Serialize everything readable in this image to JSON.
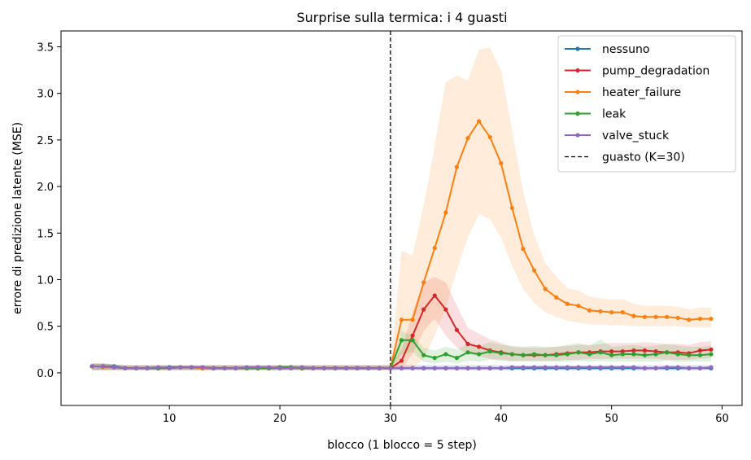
{
  "chart_data": {
    "type": "line",
    "title": "Surprise sulla termica: i 4 guasti",
    "xlabel": "blocco (1 blocco = 5 step)",
    "ylabel": "errore di predizione latente (MSE)",
    "xlim": [
      0.2,
      61.8
    ],
    "ylim": [
      -0.35,
      3.67
    ],
    "xticks": [
      10,
      20,
      30,
      40,
      50,
      60
    ],
    "yticks": [
      0.0,
      0.5,
      1.0,
      1.5,
      2.0,
      2.5,
      3.0,
      3.5
    ],
    "grid": false,
    "legend_position": "top-right",
    "x": [
      3,
      4,
      5,
      6,
      7,
      8,
      9,
      10,
      11,
      12,
      13,
      14,
      15,
      16,
      17,
      18,
      19,
      20,
      21,
      22,
      23,
      24,
      25,
      26,
      27,
      28,
      29,
      30,
      31,
      32,
      33,
      34,
      35,
      36,
      37,
      38,
      39,
      40,
      41,
      42,
      43,
      44,
      45,
      46,
      47,
      48,
      49,
      50,
      51,
      52,
      53,
      54,
      55,
      56,
      57,
      58,
      59
    ],
    "series": [
      {
        "name": "nessuno",
        "color": "#1f77b4",
        "values": [
          0.07,
          0.07,
          0.07,
          0.05,
          0.05,
          0.05,
          0.05,
          0.06,
          0.06,
          0.06,
          0.05,
          0.05,
          0.05,
          0.05,
          0.05,
          0.05,
          0.05,
          0.05,
          0.05,
          0.05,
          0.05,
          0.05,
          0.05,
          0.05,
          0.05,
          0.05,
          0.05,
          0.05,
          0.05,
          0.05,
          0.05,
          0.05,
          0.05,
          0.05,
          0.05,
          0.05,
          0.05,
          0.05,
          0.05,
          0.05,
          0.05,
          0.05,
          0.05,
          0.05,
          0.05,
          0.05,
          0.05,
          0.05,
          0.05,
          0.05,
          0.05,
          0.05,
          0.05,
          0.05,
          0.05,
          0.05,
          0.05
        ],
        "band_low": [
          0.03,
          0.03,
          0.03,
          0.03,
          0.03,
          0.03,
          0.03,
          0.03,
          0.03,
          0.03,
          0.03,
          0.03,
          0.03,
          0.03,
          0.03,
          0.03,
          0.03,
          0.03,
          0.03,
          0.03,
          0.03,
          0.03,
          0.03,
          0.03,
          0.03,
          0.03,
          0.03,
          0.03,
          0.03,
          0.03,
          0.03,
          0.03,
          0.03,
          0.03,
          0.03,
          0.03,
          0.03,
          0.03,
          0.03,
          0.03,
          0.03,
          0.03,
          0.03,
          0.03,
          0.03,
          0.03,
          0.03,
          0.03,
          0.03,
          0.03,
          0.03,
          0.03,
          0.03,
          0.03,
          0.03,
          0.03,
          0.03
        ],
        "band_high": [
          0.1,
          0.1,
          0.09,
          0.08,
          0.08,
          0.08,
          0.08,
          0.08,
          0.08,
          0.08,
          0.08,
          0.08,
          0.08,
          0.08,
          0.08,
          0.08,
          0.08,
          0.08,
          0.08,
          0.08,
          0.08,
          0.08,
          0.08,
          0.08,
          0.08,
          0.08,
          0.08,
          0.08,
          0.08,
          0.08,
          0.08,
          0.08,
          0.08,
          0.08,
          0.08,
          0.08,
          0.08,
          0.08,
          0.08,
          0.08,
          0.08,
          0.08,
          0.08,
          0.08,
          0.08,
          0.08,
          0.08,
          0.08,
          0.08,
          0.08,
          0.08,
          0.08,
          0.08,
          0.08,
          0.08,
          0.08,
          0.08
        ]
      },
      {
        "name": "pump_degradation",
        "color": "#d62728",
        "values": [
          0.07,
          0.07,
          0.06,
          0.05,
          0.05,
          0.05,
          0.05,
          0.05,
          0.06,
          0.06,
          0.05,
          0.05,
          0.05,
          0.05,
          0.05,
          0.06,
          0.05,
          0.06,
          0.06,
          0.05,
          0.05,
          0.05,
          0.05,
          0.05,
          0.05,
          0.05,
          0.05,
          0.05,
          0.13,
          0.4,
          0.68,
          0.83,
          0.68,
          0.46,
          0.31,
          0.28,
          0.24,
          0.22,
          0.2,
          0.19,
          0.19,
          0.19,
          0.2,
          0.21,
          0.22,
          0.22,
          0.23,
          0.23,
          0.23,
          0.24,
          0.24,
          0.23,
          0.22,
          0.22,
          0.21,
          0.24,
          0.25
        ],
        "band_low": [
          0.03,
          0.03,
          0.03,
          0.03,
          0.03,
          0.03,
          0.03,
          0.03,
          0.03,
          0.03,
          0.03,
          0.03,
          0.03,
          0.03,
          0.03,
          0.03,
          0.03,
          0.03,
          0.03,
          0.03,
          0.03,
          0.03,
          0.03,
          0.03,
          0.03,
          0.03,
          0.03,
          0.03,
          0.05,
          0.2,
          0.45,
          0.58,
          0.4,
          0.27,
          0.2,
          0.18,
          0.15,
          0.14,
          0.13,
          0.13,
          0.13,
          0.13,
          0.13,
          0.14,
          0.14,
          0.15,
          0.15,
          0.15,
          0.15,
          0.15,
          0.15,
          0.15,
          0.14,
          0.14,
          0.14,
          0.15,
          0.16
        ],
        "band_high": [
          0.1,
          0.1,
          0.09,
          0.08,
          0.08,
          0.08,
          0.08,
          0.08,
          0.08,
          0.08,
          0.08,
          0.08,
          0.08,
          0.08,
          0.08,
          0.08,
          0.08,
          0.08,
          0.08,
          0.08,
          0.08,
          0.08,
          0.08,
          0.08,
          0.08,
          0.08,
          0.08,
          0.08,
          0.25,
          0.65,
          0.97,
          1.03,
          0.97,
          0.72,
          0.48,
          0.42,
          0.36,
          0.32,
          0.28,
          0.27,
          0.27,
          0.27,
          0.28,
          0.29,
          0.3,
          0.3,
          0.31,
          0.32,
          0.32,
          0.32,
          0.33,
          0.32,
          0.31,
          0.31,
          0.3,
          0.33,
          0.34
        ]
      },
      {
        "name": "heater_failure",
        "color": "#ff7f0e",
        "values": [
          0.07,
          0.06,
          0.06,
          0.05,
          0.05,
          0.05,
          0.05,
          0.05,
          0.06,
          0.06,
          0.05,
          0.05,
          0.05,
          0.05,
          0.05,
          0.05,
          0.05,
          0.06,
          0.05,
          0.05,
          0.05,
          0.05,
          0.05,
          0.05,
          0.05,
          0.05,
          0.05,
          0.05,
          0.57,
          0.57,
          0.97,
          1.34,
          1.72,
          2.21,
          2.52,
          2.7,
          2.53,
          2.25,
          1.77,
          1.33,
          1.1,
          0.9,
          0.81,
          0.74,
          0.72,
          0.67,
          0.66,
          0.65,
          0.65,
          0.61,
          0.6,
          0.6,
          0.6,
          0.59,
          0.57,
          0.58,
          0.58
        ],
        "band_low": [
          0.03,
          0.03,
          0.03,
          0.03,
          0.03,
          0.03,
          0.03,
          0.03,
          0.03,
          0.03,
          0.03,
          0.03,
          0.03,
          0.03,
          0.03,
          0.03,
          0.03,
          0.03,
          0.03,
          0.03,
          0.03,
          0.03,
          0.03,
          0.03,
          0.03,
          0.03,
          0.03,
          0.03,
          0.05,
          0.05,
          0.15,
          0.4,
          0.7,
          1.1,
          1.45,
          1.7,
          1.65,
          1.45,
          1.15,
          0.9,
          0.75,
          0.65,
          0.6,
          0.56,
          0.54,
          0.52,
          0.52,
          0.51,
          0.51,
          0.5,
          0.5,
          0.5,
          0.5,
          0.5,
          0.49,
          0.49,
          0.49
        ],
        "band_high": [
          0.1,
          0.1,
          0.09,
          0.08,
          0.08,
          0.08,
          0.08,
          0.08,
          0.08,
          0.08,
          0.08,
          0.08,
          0.08,
          0.08,
          0.08,
          0.08,
          0.08,
          0.08,
          0.08,
          0.08,
          0.08,
          0.08,
          0.08,
          0.08,
          0.08,
          0.08,
          0.08,
          0.08,
          1.31,
          1.26,
          1.8,
          2.43,
          3.12,
          3.19,
          3.14,
          3.47,
          3.49,
          3.25,
          2.6,
          1.95,
          1.48,
          1.18,
          1.03,
          0.91,
          0.88,
          0.82,
          0.8,
          0.79,
          0.79,
          0.74,
          0.72,
          0.72,
          0.72,
          0.71,
          0.68,
          0.7,
          0.7
        ]
      },
      {
        "name": "leak",
        "color": "#2ca02c",
        "values": [
          0.07,
          0.07,
          0.06,
          0.05,
          0.05,
          0.05,
          0.05,
          0.05,
          0.06,
          0.06,
          0.06,
          0.05,
          0.05,
          0.05,
          0.05,
          0.05,
          0.05,
          0.06,
          0.06,
          0.05,
          0.05,
          0.05,
          0.05,
          0.05,
          0.05,
          0.05,
          0.05,
          0.05,
          0.35,
          0.35,
          0.19,
          0.16,
          0.2,
          0.16,
          0.22,
          0.2,
          0.23,
          0.21,
          0.2,
          0.19,
          0.2,
          0.19,
          0.19,
          0.2,
          0.22,
          0.2,
          0.22,
          0.19,
          0.2,
          0.2,
          0.19,
          0.2,
          0.22,
          0.2,
          0.19,
          0.19,
          0.2
        ],
        "band_low": [
          0.03,
          0.03,
          0.03,
          0.03,
          0.03,
          0.03,
          0.03,
          0.03,
          0.03,
          0.03,
          0.03,
          0.03,
          0.03,
          0.03,
          0.03,
          0.03,
          0.03,
          0.03,
          0.03,
          0.03,
          0.03,
          0.03,
          0.03,
          0.03,
          0.03,
          0.03,
          0.03,
          0.03,
          0.2,
          0.22,
          0.12,
          0.1,
          0.12,
          0.1,
          0.13,
          0.12,
          0.14,
          0.13,
          0.12,
          0.12,
          0.12,
          0.12,
          0.12,
          0.12,
          0.13,
          0.12,
          0.13,
          0.12,
          0.12,
          0.12,
          0.12,
          0.12,
          0.13,
          0.12,
          0.12,
          0.12,
          0.12
        ],
        "band_high": [
          0.1,
          0.1,
          0.09,
          0.08,
          0.08,
          0.08,
          0.08,
          0.08,
          0.08,
          0.08,
          0.08,
          0.08,
          0.08,
          0.08,
          0.08,
          0.08,
          0.08,
          0.08,
          0.08,
          0.08,
          0.08,
          0.08,
          0.08,
          0.08,
          0.08,
          0.08,
          0.08,
          0.08,
          0.45,
          0.4,
          0.27,
          0.24,
          0.28,
          0.25,
          0.31,
          0.29,
          0.33,
          0.3,
          0.29,
          0.28,
          0.29,
          0.28,
          0.28,
          0.3,
          0.32,
          0.29,
          0.36,
          0.28,
          0.29,
          0.3,
          0.28,
          0.29,
          0.31,
          0.29,
          0.28,
          0.28,
          0.29
        ]
      },
      {
        "name": "valve_stuck",
        "color": "#9467bd",
        "values": [
          0.07,
          0.07,
          0.06,
          0.05,
          0.05,
          0.05,
          0.06,
          0.05,
          0.06,
          0.06,
          0.06,
          0.05,
          0.05,
          0.05,
          0.06,
          0.06,
          0.06,
          0.05,
          0.05,
          0.06,
          0.05,
          0.05,
          0.05,
          0.05,
          0.05,
          0.05,
          0.05,
          0.05,
          0.05,
          0.05,
          0.05,
          0.05,
          0.05,
          0.05,
          0.05,
          0.05,
          0.05,
          0.05,
          0.06,
          0.06,
          0.06,
          0.06,
          0.06,
          0.06,
          0.06,
          0.06,
          0.06,
          0.06,
          0.06,
          0.06,
          0.05,
          0.05,
          0.06,
          0.06,
          0.05,
          0.05,
          0.06
        ],
        "band_low": [
          0.03,
          0.03,
          0.03,
          0.03,
          0.03,
          0.03,
          0.03,
          0.03,
          0.03,
          0.03,
          0.03,
          0.03,
          0.03,
          0.03,
          0.03,
          0.03,
          0.03,
          0.03,
          0.03,
          0.03,
          0.03,
          0.03,
          0.03,
          0.03,
          0.03,
          0.03,
          0.03,
          0.03,
          0.03,
          0.03,
          0.03,
          0.03,
          0.03,
          0.03,
          0.03,
          0.03,
          0.03,
          0.03,
          0.03,
          0.03,
          0.03,
          0.03,
          0.03,
          0.03,
          0.03,
          0.03,
          0.03,
          0.03,
          0.03,
          0.03,
          0.03,
          0.03,
          0.03,
          0.03,
          0.03,
          0.03,
          0.03
        ],
        "band_high": [
          0.1,
          0.1,
          0.09,
          0.08,
          0.08,
          0.08,
          0.08,
          0.08,
          0.08,
          0.08,
          0.08,
          0.08,
          0.08,
          0.08,
          0.08,
          0.08,
          0.08,
          0.08,
          0.08,
          0.08,
          0.08,
          0.08,
          0.08,
          0.08,
          0.08,
          0.08,
          0.08,
          0.08,
          0.08,
          0.08,
          0.08,
          0.08,
          0.08,
          0.08,
          0.08,
          0.08,
          0.08,
          0.08,
          0.08,
          0.08,
          0.08,
          0.08,
          0.08,
          0.08,
          0.08,
          0.08,
          0.08,
          0.08,
          0.08,
          0.08,
          0.08,
          0.08,
          0.08,
          0.08,
          0.08,
          0.08,
          0.08
        ]
      }
    ],
    "vline": {
      "x": 30,
      "label": "guasto (K=30)",
      "color": "#000000",
      "style": "dashed"
    }
  }
}
